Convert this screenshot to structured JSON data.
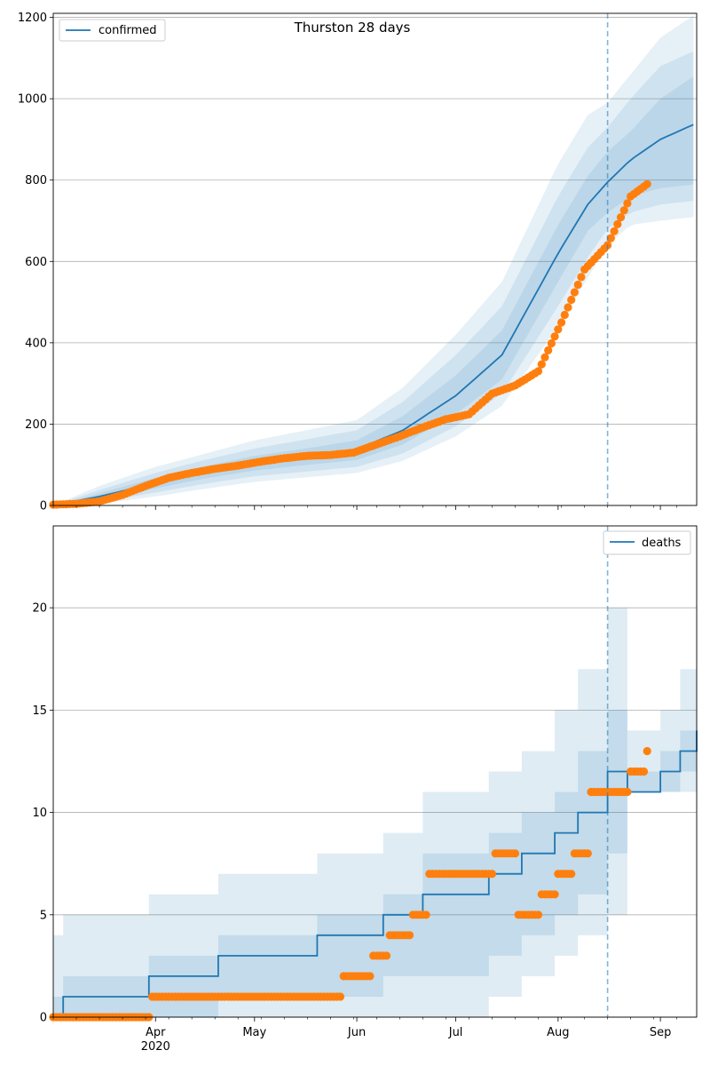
{
  "chart_data": [
    {
      "type": "line",
      "title": "Thurston 28 days",
      "legend": {
        "label": "confirmed",
        "placement": "top-left"
      },
      "colors": {
        "line": "#1f77b4",
        "band": "#1f77b4",
        "points": "#ff7f0e",
        "grid": "#b0b0b0"
      },
      "grid": "y",
      "ylim": [
        0,
        1210
      ],
      "yticks": [
        0,
        200,
        400,
        600,
        800,
        1000,
        1200
      ],
      "forecast_start": "2020-08-16",
      "model_x": [
        "2020-03-01",
        "2020-03-15",
        "2020-04-01",
        "2020-04-15",
        "2020-05-01",
        "2020-05-15",
        "2020-06-01",
        "2020-06-15",
        "2020-07-01",
        "2020-07-15",
        "2020-08-01",
        "2020-08-10",
        "2020-08-16",
        "2020-08-23",
        "2020-09-01",
        "2020-09-12"
      ],
      "model_median": [
        0,
        22,
        55,
        80,
        105,
        118,
        138,
        185,
        270,
        370,
        620,
        740,
        795,
        850,
        900,
        940
      ],
      "bands": [
        {
          "lower": [
            0,
            14,
            42,
            65,
            86,
            98,
            112,
            150,
            225,
            310,
            550,
            675,
            720,
            760,
            780,
            790
          ],
          "upper": [
            0,
            30,
            68,
            95,
            122,
            138,
            160,
            220,
            320,
            430,
            690,
            810,
            870,
            920,
            1000,
            1060
          ]
        },
        {
          "lower": [
            0,
            8,
            32,
            52,
            72,
            82,
            95,
            128,
            195,
            275,
            490,
            610,
            680,
            720,
            740,
            750
          ],
          "upper": [
            0,
            38,
            80,
            110,
            140,
            160,
            185,
            255,
            370,
            490,
            760,
            880,
            930,
            1000,
            1080,
            1120
          ]
        },
        {
          "lower": [
            0,
            4,
            22,
            40,
            58,
            68,
            80,
            110,
            170,
            245,
            440,
            560,
            640,
            690,
            700,
            710
          ],
          "upper": [
            0,
            48,
            95,
            125,
            160,
            182,
            210,
            290,
            420,
            550,
            840,
            960,
            990,
            1060,
            1150,
            1210
          ]
        }
      ],
      "observed_x": [
        "2020-03-01",
        "2020-03-08",
        "2020-03-15",
        "2020-03-22",
        "2020-03-29",
        "2020-04-05",
        "2020-04-12",
        "2020-04-19",
        "2020-04-26",
        "2020-05-03",
        "2020-05-10",
        "2020-05-17",
        "2020-05-24",
        "2020-05-31",
        "2020-06-07",
        "2020-06-14",
        "2020-06-21",
        "2020-06-28",
        "2020-07-05",
        "2020-07-12",
        "2020-07-19",
        "2020-07-26",
        "2020-08-02",
        "2020-08-09",
        "2020-08-16",
        "2020-08-23",
        "2020-08-28"
      ],
      "observed_y": [
        2,
        4,
        10,
        26,
        48,
        68,
        80,
        90,
        98,
        108,
        116,
        122,
        124,
        130,
        150,
        170,
        192,
        212,
        224,
        275,
        295,
        330,
        450,
        580,
        640,
        760,
        790
      ],
      "x_major_ticks": [
        {
          "date": "2020-04-01",
          "label": "Apr",
          "sublabel": "2020"
        },
        {
          "date": "2020-05-01",
          "label": "May"
        },
        {
          "date": "2020-06-01",
          "label": "Jun"
        },
        {
          "date": "2020-07-01",
          "label": "Jul"
        },
        {
          "date": "2020-08-01",
          "label": "Aug"
        },
        {
          "date": "2020-09-01",
          "label": "Sep"
        }
      ],
      "xlim": [
        "2020-03-01",
        "2020-09-12"
      ]
    },
    {
      "type": "line",
      "legend": {
        "label": "deaths",
        "placement": "top-right"
      },
      "colors": {
        "line": "#1f77b4",
        "band": "#1f77b4",
        "points": "#ff7f0e",
        "grid": "#b0b0b0"
      },
      "grid": "y",
      "ylim": [
        0,
        24
      ],
      "yticks": [
        0,
        5,
        10,
        15,
        20
      ],
      "forecast_start": "2020-08-16",
      "step_x": [
        "2020-03-01",
        "2020-03-04",
        "2020-03-30",
        "2020-04-20",
        "2020-05-20",
        "2020-06-09",
        "2020-06-21",
        "2020-07-11",
        "2020-07-21",
        "2020-07-31",
        "2020-08-07",
        "2020-08-16",
        "2020-08-22",
        "2020-09-01",
        "2020-09-07",
        "2020-09-12"
      ],
      "step_median": [
        0,
        1,
        2,
        3,
        4,
        5,
        6,
        7,
        8,
        9,
        10,
        12,
        11,
        12,
        13,
        14
      ],
      "step_inner_lower": [
        0,
        0,
        0,
        1,
        1,
        2,
        2,
        3,
        4,
        5,
        6,
        8,
        11,
        11,
        12,
        12
      ],
      "step_inner_upper": [
        1,
        2,
        3,
        4,
        5,
        6,
        8,
        9,
        10,
        11,
        13,
        15,
        12,
        13,
        14,
        15
      ],
      "step_outer_lower": [
        0,
        0,
        0,
        0,
        0,
        0,
        0,
        1,
        2,
        3,
        4,
        5,
        11,
        11,
        11,
        11
      ],
      "step_outer_upper": [
        4,
        5,
        6,
        7,
        8,
        9,
        11,
        12,
        13,
        15,
        17,
        20,
        14,
        15,
        17,
        18
      ],
      "observed_x": [
        "2020-03-01",
        "2020-03-31",
        "2020-04-10",
        "2020-04-20",
        "2020-04-30",
        "2020-05-10",
        "2020-05-20",
        "2020-05-28",
        "2020-06-06",
        "2020-06-11",
        "2020-06-18",
        "2020-06-23",
        "2020-07-03",
        "2020-07-13",
        "2020-07-20",
        "2020-07-27",
        "2020-08-01",
        "2020-08-06",
        "2020-08-11",
        "2020-08-18",
        "2020-08-23",
        "2020-08-28"
      ],
      "observed_y": [
        0,
        1,
        1,
        1,
        1,
        1,
        1,
        2,
        3,
        4,
        5,
        7,
        7,
        8,
        5,
        6,
        7,
        8,
        11,
        11,
        12,
        13
      ],
      "x_major_ticks": [
        {
          "date": "2020-04-01",
          "label": "Apr",
          "sublabel": "2020"
        },
        {
          "date": "2020-05-01",
          "label": "May"
        },
        {
          "date": "2020-06-01",
          "label": "Jun"
        },
        {
          "date": "2020-07-01",
          "label": "Jul"
        },
        {
          "date": "2020-08-01",
          "label": "Aug"
        },
        {
          "date": "2020-09-01",
          "label": "Sep"
        }
      ],
      "xlim": [
        "2020-03-01",
        "2020-09-12"
      ]
    }
  ]
}
